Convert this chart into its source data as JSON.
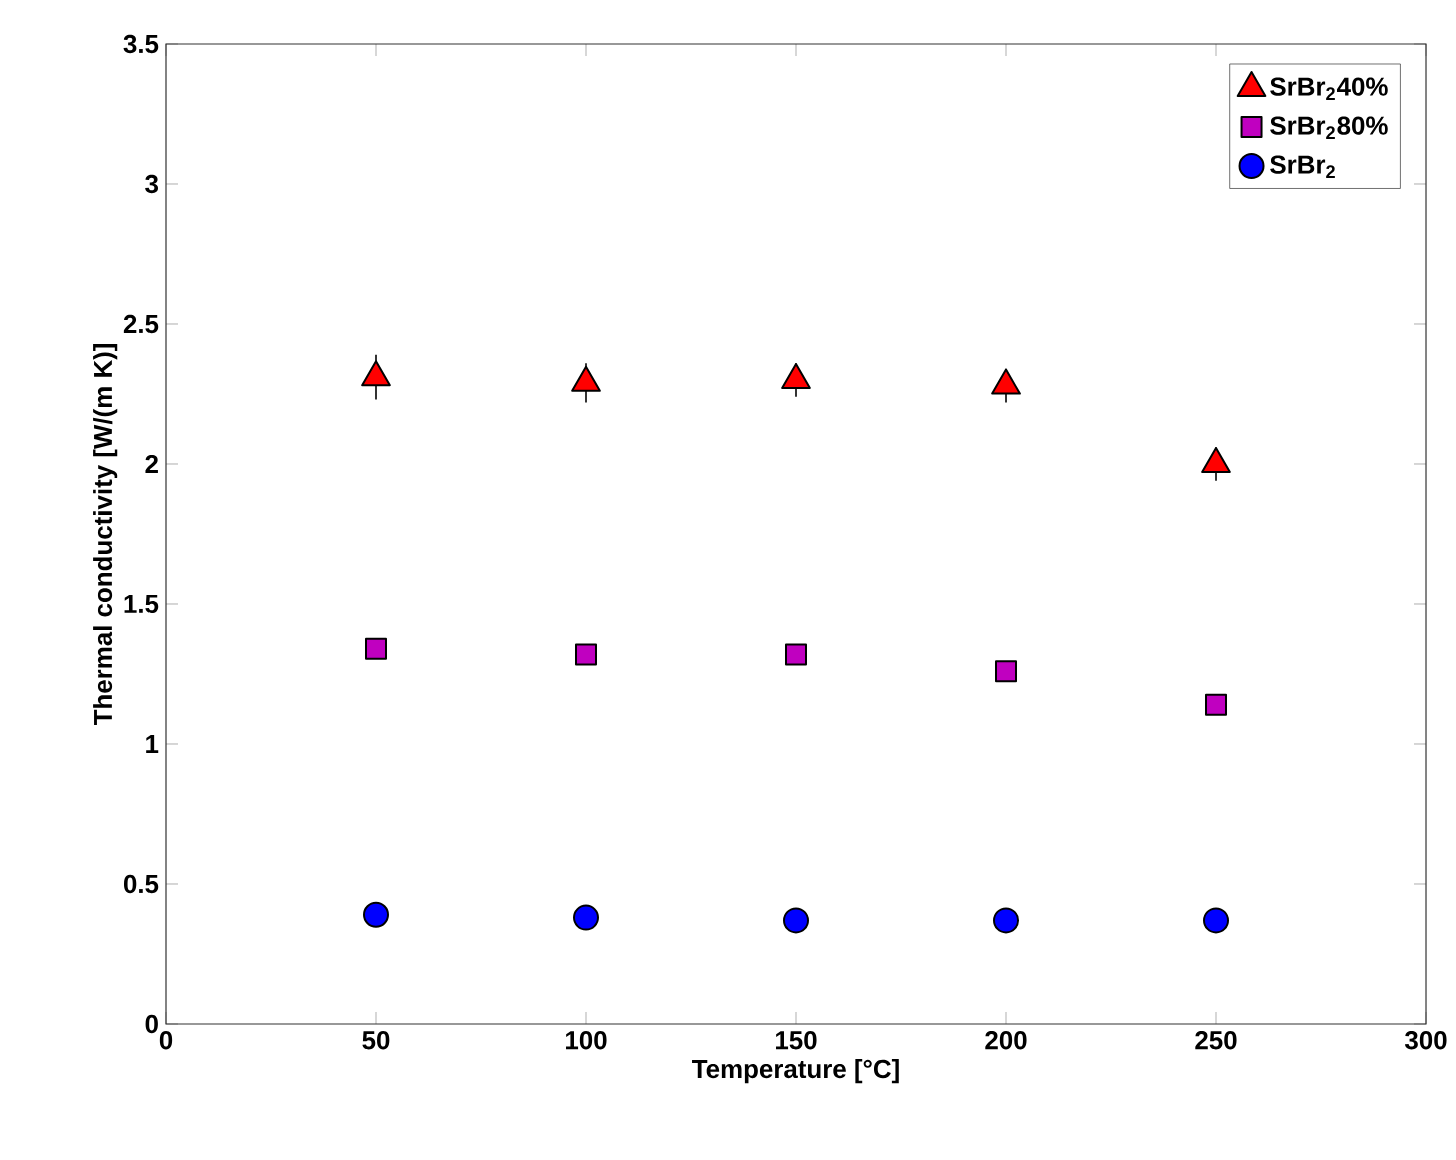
{
  "chart_data": {
    "type": "scatter",
    "xlabel": "Temperature [°C]",
    "ylabel": "Thermal conductivity [W/(m K)]",
    "x": [
      50,
      100,
      150,
      200,
      250
    ],
    "xlim": [
      0,
      300
    ],
    "xticks": [
      0,
      50,
      100,
      150,
      200,
      250,
      300
    ],
    "ylim": [
      0,
      3.5
    ],
    "yticks": [
      0,
      0.5,
      1,
      1.5,
      2,
      2.5,
      3,
      3.5
    ],
    "grid": false,
    "legend": "top right",
    "series": [
      {
        "name": "SrBr$_{2}$40%",
        "color": "#ff0000",
        "marker": "triangle",
        "values": [
          2.31,
          2.29,
          2.3,
          2.28,
          2.0
        ],
        "errors": [
          0.08,
          0.07,
          0.06,
          0.06,
          0.06
        ]
      },
      {
        "name": "SrBr$_{2}$80%",
        "color": "#c000c0",
        "marker": "square",
        "values": [
          1.34,
          1.32,
          1.32,
          1.26,
          1.14
        ],
        "errors": [
          0.01,
          0.01,
          0.01,
          0.01,
          0.01
        ]
      },
      {
        "name": "SrBr$_{2}$",
        "color": "#0000ff",
        "marker": "circle",
        "values": [
          0.39,
          0.38,
          0.37,
          0.37,
          0.37
        ],
        "errors": [
          0.01,
          0.01,
          0.01,
          0.01,
          0.01
        ]
      }
    ]
  }
}
